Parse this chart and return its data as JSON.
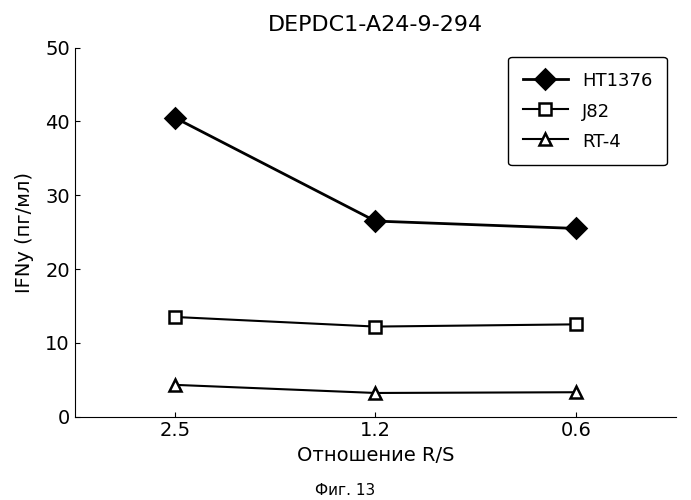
{
  "title": "DEPDC1-A24-9-294",
  "xlabel": "Отношение R/S",
  "ylabel": "IFNy (пг/мл)",
  "caption": "Фиг. 13",
  "x_values": [
    0,
    1,
    2
  ],
  "x_labels": [
    "2.5",
    "1.2",
    "0.6"
  ],
  "series": [
    {
      "name": "HT1376",
      "y": [
        40.5,
        26.5,
        25.5
      ],
      "color": "#000000",
      "marker": "D",
      "markersize": 10,
      "markerfacecolor": "#000000",
      "linewidth": 2.0
    },
    {
      "name": "J82",
      "y": [
        13.5,
        12.2,
        12.5
      ],
      "color": "#000000",
      "marker": "s",
      "markersize": 9,
      "markerfacecolor": "#ffffff",
      "linewidth": 1.5
    },
    {
      "name": "RT-4",
      "y": [
        4.3,
        3.2,
        3.3
      ],
      "color": "#000000",
      "marker": "^",
      "markersize": 9,
      "markerfacecolor": "#ffffff",
      "linewidth": 1.5
    }
  ],
  "ylim": [
    0,
    50
  ],
  "yticks": [
    0,
    10,
    20,
    30,
    40,
    50
  ],
  "background_color": "#ffffff",
  "title_fontsize": 16,
  "label_fontsize": 14,
  "tick_fontsize": 14,
  "legend_fontsize": 13,
  "caption_fontsize": 11
}
